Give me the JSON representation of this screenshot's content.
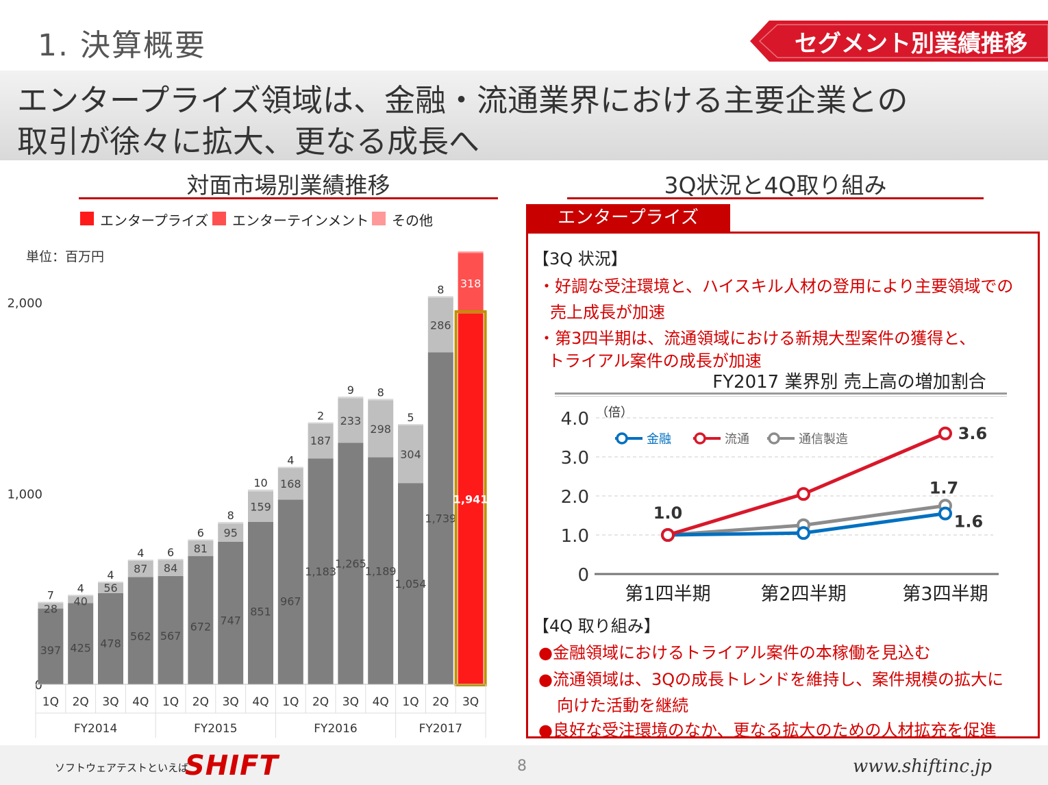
{
  "header": {
    "title": "1.  決算概要",
    "tag": "セグメント別業績推移",
    "headline_line1": "エンタープライズ領域は、金融・流通業界における主要企業との",
    "headline_line2": "取引が徐々に拡大、更なる成長へ"
  },
  "left": {
    "section_title": "対面市場別業績推移",
    "unit": "単位：百万円"
  },
  "right": {
    "section_title": "3Q状況と4Q取り組み",
    "tab_label": "エンタープライズ",
    "q3_heading": "【3Q 状況】",
    "q3_line1": "・好調な受注環境と、ハイスキル人材の登用により主要領域での",
    "q3_line2": "売上成長が加速",
    "q3_line3": "・第3四半期は、流通領域における新規大型案件の獲得と、",
    "q3_line4": "トライアル案件の成長が加速",
    "q4_heading": "【4Q 取り組み】",
    "q4_line1": "●金融領域におけるトライアル案件の本稼働を見込む",
    "q4_line2": "●流通領域は、3Qの成長トレンドを維持し、案件規模の拡大に",
    "q4_line3": "向けた活動を継続",
    "q4_line4": "●良好な受注環境のなか、更なる拡大のための人材拡充を促進"
  },
  "footer": {
    "tagline": "ソフトウェアテストといえば",
    "logo": "SHIFT",
    "page": "8",
    "url": "www.shiftinc.jp"
  },
  "chart_data": [
    {
      "type": "bar",
      "stacked": true,
      "categories": [
        "1Q",
        "2Q",
        "3Q",
        "4Q",
        "1Q",
        "2Q",
        "3Q",
        "4Q",
        "1Q",
        "2Q",
        "3Q",
        "4Q",
        "1Q",
        "2Q",
        "3Q"
      ],
      "groups": [
        {
          "label": "FY2014",
          "span": 4
        },
        {
          "label": "FY2015",
          "span": 4
        },
        {
          "label": "FY2016",
          "span": 4
        },
        {
          "label": "FY2017",
          "span": 3
        }
      ],
      "series": [
        {
          "name": "エンタープライズ",
          "color": "#ff1a1a",
          "values": [
            397,
            425,
            478,
            562,
            567,
            672,
            747,
            851,
            967,
            1183,
            1265,
            1189,
            1054,
            1739,
            1941
          ],
          "labels": [
            "397",
            "425",
            "478",
            "562",
            "567",
            "672",
            "747",
            "851",
            "967",
            "1,183",
            "1,265",
            "1,189",
            "1,054",
            "1,739",
            "1,941"
          ]
        },
        {
          "name": "エンターテインメント",
          "color": "#ff5050",
          "values": [
            28,
            40,
            56,
            87,
            84,
            81,
            95,
            159,
            168,
            187,
            233,
            298,
            304,
            286,
            318
          ]
        },
        {
          "name": "その他",
          "color": "#ff9999",
          "values": [
            7,
            4,
            4,
            4,
            6,
            6,
            8,
            10,
            4,
            2,
            9,
            8,
            5,
            8,
            8
          ]
        }
      ],
      "actual_colors": {
        "enterprise": "#7f7f7f",
        "entertainment": "#bfbfbf",
        "other": "#d9d9d9",
        "highlight_enterprise": "#ff1a1a",
        "highlight_entertainment": "#ff5050",
        "highlight_border": "#c09000"
      },
      "y_ticks": [
        "0",
        "1,000",
        "2,000"
      ],
      "ylim": [
        0,
        2400
      ],
      "highlight_index": 14
    },
    {
      "type": "line",
      "title": "FY2017 業界別  売上高の増加割合",
      "y_unit": "（倍）",
      "categories": [
        "第1四半期",
        "第2四半期",
        "第3四半期"
      ],
      "y_ticks": [
        "0",
        "1.0",
        "2.0",
        "3.0",
        "4.0"
      ],
      "ylim": [
        0,
        4.0
      ],
      "series": [
        {
          "name": "金融",
          "color": "#0070c0",
          "values": [
            1.0,
            1.05,
            1.55
          ]
        },
        {
          "name": "流通",
          "color": "#d8182a",
          "values": [
            1.0,
            2.05,
            3.6
          ]
        },
        {
          "name": "通信製造",
          "color": "#8c8c8c",
          "values": [
            1.0,
            1.25,
            1.75
          ]
        }
      ],
      "data_labels": [
        {
          "text": "1.0",
          "series": 0,
          "index": 0
        },
        {
          "text": "3.6",
          "series": 1,
          "index": 2
        },
        {
          "text": "1.7",
          "series": 2,
          "index": 2
        },
        {
          "text": "1.6",
          "series": 0,
          "index": 2
        }
      ]
    }
  ]
}
